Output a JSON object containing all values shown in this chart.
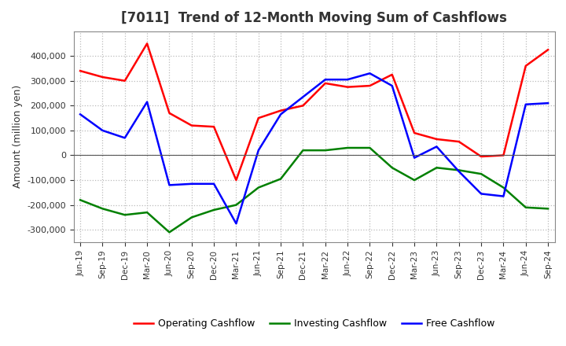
{
  "title": "[7011]  Trend of 12-Month Moving Sum of Cashflows",
  "ylabel": "Amount (million yen)",
  "ylim": [
    -350000,
    500000
  ],
  "yticks": [
    -300000,
    -200000,
    -100000,
    0,
    100000,
    200000,
    300000,
    400000
  ],
  "background_color": "#ffffff",
  "grid_color": "#bbbbbb",
  "x_labels": [
    "Jun-19",
    "Sep-19",
    "Dec-19",
    "Mar-20",
    "Jun-20",
    "Sep-20",
    "Dec-20",
    "Mar-21",
    "Jun-21",
    "Sep-21",
    "Dec-21",
    "Mar-22",
    "Jun-22",
    "Sep-22",
    "Dec-22",
    "Mar-23",
    "Jun-23",
    "Sep-23",
    "Dec-23",
    "Mar-24",
    "Jun-24",
    "Sep-24"
  ],
  "operating": [
    340000,
    315000,
    300000,
    450000,
    170000,
    120000,
    115000,
    -100000,
    150000,
    180000,
    200000,
    290000,
    275000,
    280000,
    325000,
    90000,
    65000,
    55000,
    -5000,
    0,
    360000,
    425000
  ],
  "investing": [
    -180000,
    -215000,
    -240000,
    -230000,
    -310000,
    -250000,
    -220000,
    -200000,
    -130000,
    -95000,
    20000,
    20000,
    30000,
    30000,
    -50000,
    -100000,
    -50000,
    -60000,
    -75000,
    -130000,
    -210000,
    -215000
  ],
  "free": [
    165000,
    100000,
    70000,
    215000,
    -120000,
    -115000,
    -115000,
    -275000,
    20000,
    165000,
    235000,
    305000,
    305000,
    330000,
    280000,
    -10000,
    35000,
    -65000,
    -155000,
    -165000,
    205000,
    210000
  ],
  "op_color": "#ff0000",
  "inv_color": "#008000",
  "free_color": "#0000ff",
  "line_width": 1.8,
  "title_color": "#333333",
  "title_fontsize": 12,
  "legend_labels": [
    "Operating Cashflow",
    "Investing Cashflow",
    "Free Cashflow"
  ]
}
